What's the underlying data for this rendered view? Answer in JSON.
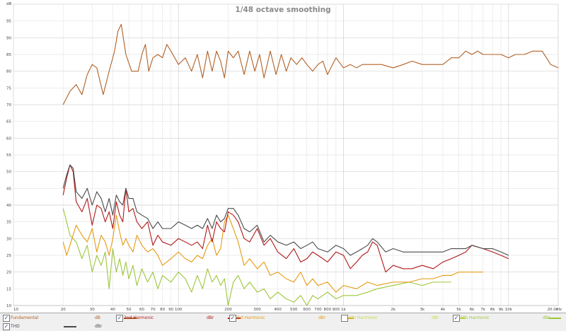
{
  "chart_data": {
    "type": "line",
    "title": "1/48 octave smoothing",
    "x_scale": "log",
    "xlim": [
      10,
      20000
    ],
    "ylim": [
      10,
      100
    ],
    "y_unit_label": "dB",
    "x_unit_label": "Hz",
    "grid": true,
    "legend_placement": "bottom",
    "x_ticks": [
      {
        "v": 10,
        "label": "10"
      },
      {
        "v": 20,
        "label": "20"
      },
      {
        "v": 30,
        "label": "30"
      },
      {
        "v": 40,
        "label": "40"
      },
      {
        "v": 50,
        "label": "50"
      },
      {
        "v": 60,
        "label": "60"
      },
      {
        "v": 70,
        "label": "70"
      },
      {
        "v": 80,
        "label": "80"
      },
      {
        "v": 90,
        "label": "90"
      },
      {
        "v": 100,
        "label": "100"
      },
      {
        "v": 200,
        "label": "200"
      },
      {
        "v": 300,
        "label": "300"
      },
      {
        "v": 400,
        "label": "400"
      },
      {
        "v": 500,
        "label": "500"
      },
      {
        "v": 600,
        "label": "600"
      },
      {
        "v": 700,
        "label": "700"
      },
      {
        "v": 800,
        "label": "800"
      },
      {
        "v": 900,
        "label": "900"
      },
      {
        "v": 1000,
        "label": "1k"
      },
      {
        "v": 2000,
        "label": "2k"
      },
      {
        "v": 3000,
        "label": "3k"
      },
      {
        "v": 4000,
        "label": "4k"
      },
      {
        "v": 5000,
        "label": "5k"
      },
      {
        "v": 6000,
        "label": "6k"
      },
      {
        "v": 7000,
        "label": "7k"
      },
      {
        "v": 8000,
        "label": "8k"
      },
      {
        "v": 9000,
        "label": "9k"
      },
      {
        "v": 10000,
        "label": "10k"
      },
      {
        "v": 20000,
        "label": "20.0k"
      }
    ],
    "y_ticks": [
      10,
      15,
      20,
      25,
      30,
      35,
      40,
      45,
      50,
      55,
      60,
      65,
      70,
      75,
      80,
      85,
      90,
      95
    ],
    "series": [
      {
        "name": "Fundamental",
        "color": "#b06025",
        "x": [
          20,
          22,
          24,
          26,
          28,
          30,
          32,
          35,
          38,
          41,
          43,
          45,
          48,
          52,
          57,
          60,
          63,
          66,
          70,
          75,
          80,
          85,
          90,
          100,
          110,
          120,
          130,
          140,
          150,
          160,
          170,
          180,
          190,
          200,
          215,
          230,
          250,
          270,
          290,
          310,
          330,
          360,
          390,
          420,
          450,
          480,
          520,
          560,
          600,
          650,
          700,
          750,
          800,
          900,
          1000,
          1100,
          1200,
          1300,
          1500,
          1700,
          2000,
          2300,
          2600,
          3000,
          3500,
          4000,
          4500,
          5000,
          5500,
          6000,
          6500,
          7000,
          8000,
          9000,
          10000,
          11000,
          12500,
          14000,
          16000,
          18000,
          20000
        ],
        "values": [
          70,
          74,
          76,
          73,
          79,
          82,
          81,
          73,
          80,
          86,
          92,
          94,
          85,
          80,
          80,
          85,
          88,
          80,
          84,
          85,
          84,
          88,
          86,
          82,
          84,
          80,
          85,
          78,
          86,
          80,
          86,
          83,
          78,
          86,
          84,
          86,
          79,
          86,
          80,
          85,
          78,
          86,
          79,
          85,
          80,
          84,
          82,
          84,
          82,
          80,
          82,
          83,
          79,
          84,
          81,
          82,
          81,
          82,
          82,
          82,
          81,
          82,
          83,
          82,
          82,
          82,
          84,
          84,
          86,
          85,
          86,
          85,
          85,
          85,
          84,
          85,
          85,
          86,
          86,
          82,
          81
        ]
      },
      {
        "name": "2nd Harmonic",
        "color": "#b01818",
        "x": [
          20,
          21,
          22,
          23,
          24,
          26,
          28,
          30,
          32,
          34,
          36,
          38,
          40,
          42,
          44,
          46,
          48,
          50,
          53,
          56,
          60,
          65,
          70,
          75,
          80,
          90,
          100,
          110,
          120,
          130,
          140,
          150,
          160,
          170,
          180,
          190,
          200,
          215,
          230,
          250,
          270,
          300,
          330,
          360,
          400,
          450,
          500,
          550,
          600,
          650,
          700,
          800,
          900,
          1000,
          1100,
          1200,
          1300,
          1400,
          1500,
          1600,
          1800,
          2000,
          2300,
          2600,
          3000,
          3500,
          4000,
          4500,
          5000,
          5500,
          6000,
          7000,
          8000,
          9000,
          10000
        ],
        "values": [
          43,
          48,
          52,
          50,
          41,
          38,
          42,
          34,
          40,
          39,
          35,
          38,
          33,
          41,
          37,
          35,
          45,
          38,
          39,
          35,
          33,
          35,
          28,
          31,
          29,
          28,
          30,
          29,
          28,
          29,
          27,
          34,
          29,
          35,
          33,
          32,
          38,
          37,
          35,
          30,
          29,
          33,
          28,
          30,
          26,
          24,
          27,
          23,
          24,
          26,
          25,
          23,
          26,
          25,
          21,
          23,
          25,
          26,
          29,
          28,
          20,
          22,
          21,
          21,
          22,
          21,
          23,
          24,
          25,
          26,
          28,
          27,
          26,
          25,
          24
        ]
      },
      {
        "name": "3rd Harmonic",
        "color": "#e49a10",
        "x": [
          20,
          21,
          22,
          24,
          26,
          28,
          30,
          32,
          34,
          36,
          38,
          40,
          42,
          44,
          46,
          48,
          50,
          53,
          56,
          60,
          65,
          70,
          75,
          80,
          90,
          100,
          110,
          120,
          130,
          140,
          150,
          160,
          170,
          180,
          190,
          200,
          215,
          230,
          250,
          270,
          300,
          330,
          360,
          400,
          450,
          500,
          550,
          600,
          650,
          700,
          800,
          900,
          1000,
          1200,
          1400,
          1600,
          2000,
          2500,
          3000,
          3500,
          4000,
          4500,
          5000,
          5500,
          6000,
          7000
        ],
        "values": [
          29,
          25,
          28,
          34,
          31,
          29,
          33,
          26,
          31,
          29,
          25,
          30,
          37,
          32,
          28,
          30,
          28,
          26,
          31,
          28,
          26,
          27,
          25,
          22,
          24,
          26,
          24,
          23,
          25,
          24,
          28,
          30,
          25,
          27,
          35,
          37,
          33,
          29,
          22,
          24,
          21,
          23,
          19,
          20,
          18,
          17,
          20,
          16,
          18,
          16,
          17,
          14,
          16,
          15,
          17,
          16,
          17,
          17,
          18,
          18,
          19,
          19,
          20,
          20,
          20,
          20
        ]
      },
      {
        "name": "4th Harmonic",
        "color": "#c9d64a",
        "visible": false
      },
      {
        "name": "5th Harmonic",
        "color": "#9cc63a",
        "x": [
          20,
          21,
          22,
          24,
          26,
          28,
          30,
          32,
          34,
          36,
          38,
          40,
          42,
          44,
          46,
          48,
          50,
          53,
          56,
          60,
          65,
          70,
          75,
          80,
          90,
          100,
          110,
          120,
          130,
          140,
          150,
          160,
          170,
          180,
          190,
          200,
          215,
          230,
          250,
          270,
          300,
          330,
          360,
          400,
          450,
          500,
          550,
          600,
          650,
          700,
          800,
          900,
          1000,
          1200,
          1400,
          1600,
          2000,
          2500,
          3000,
          3500,
          4000,
          4500
        ],
        "values": [
          39,
          35,
          31,
          29,
          24,
          28,
          20,
          25,
          22,
          26,
          15,
          27,
          20,
          24,
          19,
          23,
          18,
          22,
          16,
          21,
          17,
          20,
          15,
          19,
          17,
          20,
          18,
          14,
          19,
          15,
          21,
          17,
          19,
          16,
          18,
          10,
          17,
          19,
          15,
          17,
          14,
          15,
          12,
          14,
          12,
          11,
          13,
          10,
          13,
          12,
          14,
          12,
          13,
          13,
          14,
          15,
          16,
          17,
          16,
          17,
          17,
          17
        ]
      },
      {
        "name": "THD",
        "color": "#4a4a4a",
        "x": [
          20,
          21,
          22,
          23,
          24,
          26,
          28,
          30,
          32,
          34,
          36,
          38,
          40,
          42,
          44,
          46,
          48,
          50,
          53,
          56,
          60,
          65,
          70,
          75,
          80,
          90,
          100,
          110,
          120,
          130,
          140,
          150,
          160,
          170,
          180,
          190,
          200,
          215,
          230,
          250,
          270,
          300,
          330,
          360,
          400,
          450,
          500,
          550,
          600,
          650,
          700,
          800,
          900,
          1000,
          1100,
          1200,
          1300,
          1400,
          1500,
          1600,
          1800,
          2000,
          2300,
          2600,
          3000,
          3500,
          4000,
          4500,
          5000,
          5500,
          6000,
          7000,
          8000,
          9000,
          10000
        ],
        "values": [
          45,
          49,
          52,
          51,
          44,
          42,
          45,
          40,
          44,
          42,
          38,
          42,
          37,
          43,
          41,
          40,
          45,
          42,
          42,
          38,
          37,
          36,
          33,
          35,
          33,
          33,
          35,
          34,
          33,
          34,
          33,
          36,
          33,
          37,
          35,
          36,
          39,
          39,
          37,
          33,
          32,
          34,
          29,
          31,
          29,
          28,
          29,
          27,
          28,
          29,
          27,
          26,
          28,
          27,
          25,
          26,
          27,
          28,
          30,
          29,
          26,
          27,
          26,
          26,
          26,
          26,
          26,
          27,
          27,
          27,
          28,
          27,
          27,
          26,
          25
        ]
      }
    ]
  },
  "legend": {
    "row1": [
      {
        "name": "Fundamental",
        "unit": "dB",
        "checked": true,
        "color": "#b06025"
      },
      {
        "name": "2nd Harmonic",
        "unit": "dBr",
        "checked": true,
        "color": "#b01818"
      },
      {
        "name": "3rd Harmonic",
        "unit": "dBr",
        "checked": true,
        "color": "#e49a10"
      },
      {
        "name": "4th Harmonic",
        "unit": "dBr",
        "checked": false,
        "color": "#c9d64a"
      },
      {
        "name": "5th Harmonic",
        "unit": "dBr",
        "checked": true,
        "color": "#9cc63a"
      }
    ],
    "row2": [
      {
        "name": "THD",
        "unit": "dBr",
        "checked": true,
        "color": "#4a4a4a"
      }
    ],
    "check_glyph": "✓"
  }
}
